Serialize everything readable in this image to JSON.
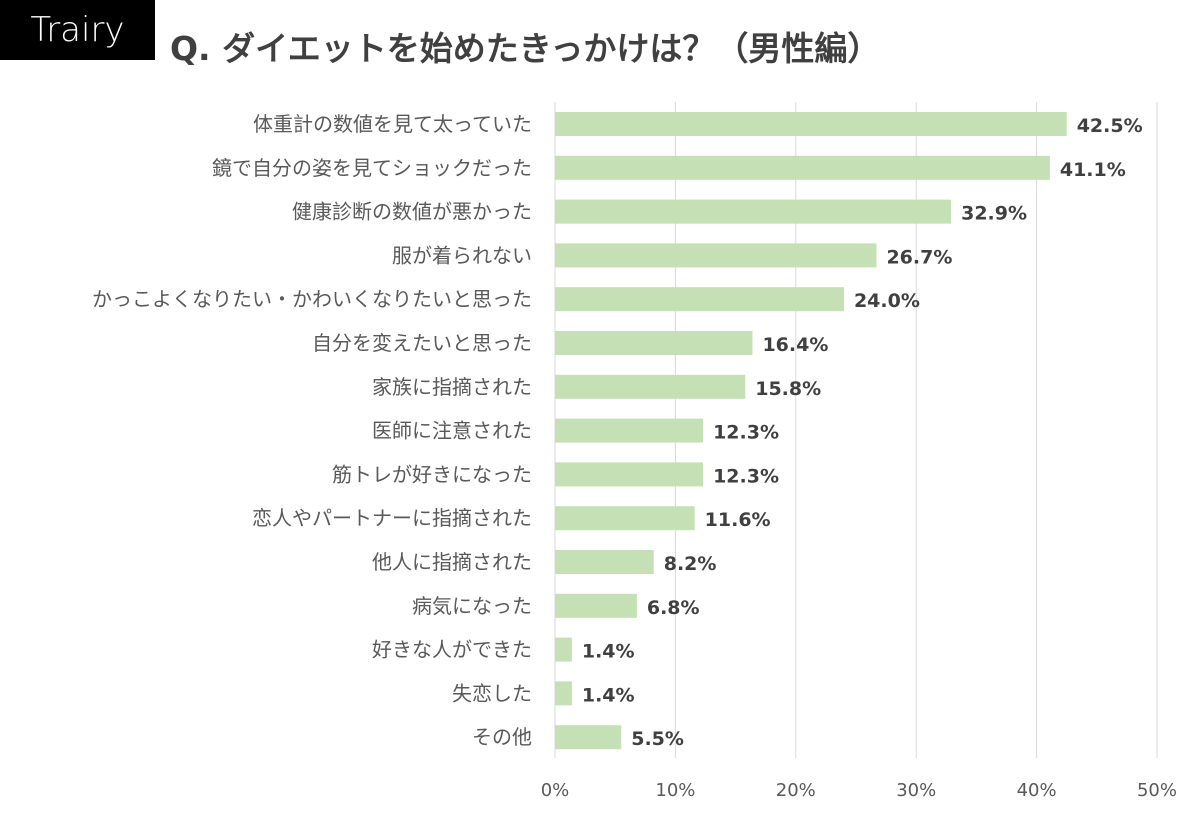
{
  "logo": "Trairy",
  "title": "Q. ダイエットを始めたきっかけは？（男性編）",
  "chart_data": {
    "type": "bar",
    "orientation": "horizontal",
    "title": "Q. ダイエットを始めたきっかけは？（男性編）",
    "categories": [
      "体重計の数値を見て太っていた",
      "鏡で自分の姿を見てショックだった",
      "健康診断の数値が悪かった",
      "服が着られない",
      "かっこよくなりたい・かわいくなりたいと思った",
      "自分を変えたいと思った",
      "家族に指摘された",
      "医師に注意された",
      "筋トレが好きになった",
      "恋人やパートナーに指摘された",
      "他人に指摘された",
      "病気になった",
      "好きな人ができた",
      "失恋した",
      "その他"
    ],
    "values": [
      42.5,
      41.1,
      32.9,
      26.7,
      24.0,
      16.4,
      15.8,
      12.3,
      12.3,
      11.6,
      8.2,
      6.8,
      1.4,
      1.4,
      5.5
    ],
    "value_labels": [
      "42.5%",
      "41.1%",
      "32.9%",
      "26.7%",
      "24.0%",
      "16.4%",
      "15.8%",
      "12.3%",
      "12.3%",
      "11.6%",
      "8.2%",
      "6.8%",
      "1.4%",
      "1.4%",
      "5.5%"
    ],
    "xlim": [
      0,
      50
    ],
    "xticks": [
      "0%",
      "10%",
      "20%",
      "30%",
      "40%",
      "50%"
    ],
    "grid": true,
    "bar_color": "#c5e0b4"
  }
}
